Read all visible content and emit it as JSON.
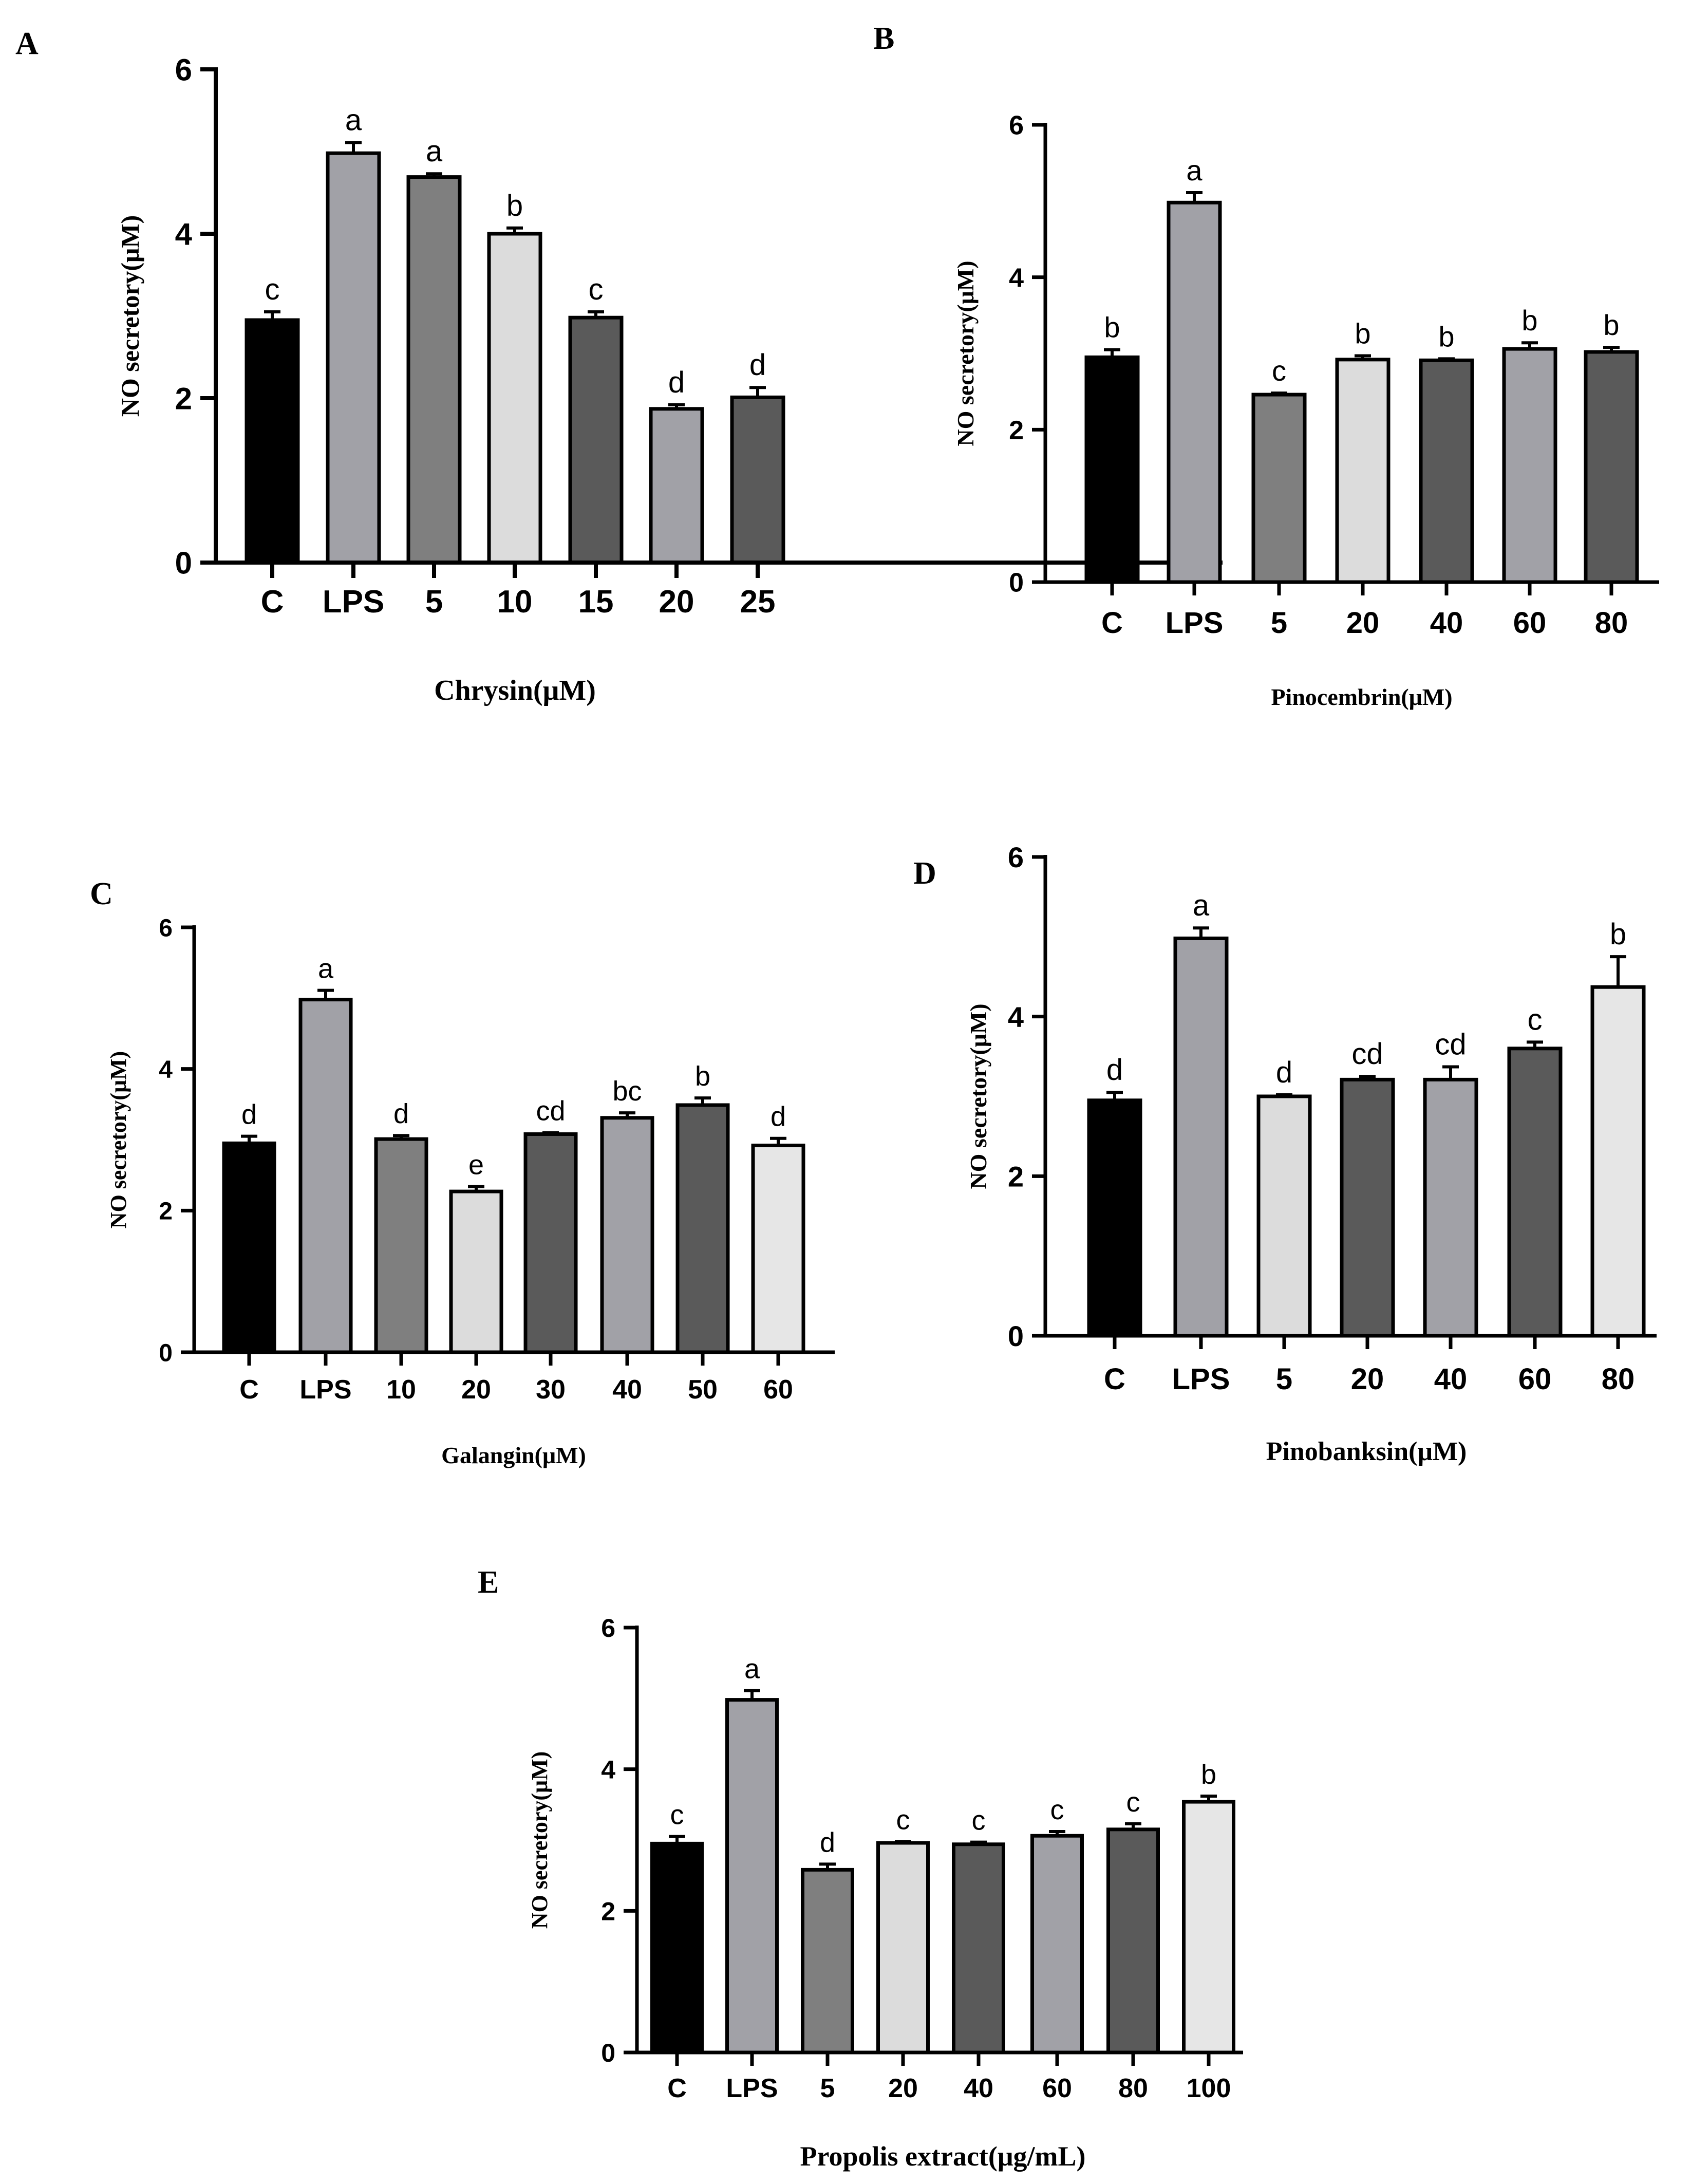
{
  "chart_data": [
    {
      "panel": "A",
      "type": "bar",
      "xlabel": "Chrysin(μM)",
      "ylabel": "NO secretory(μM)",
      "ylim": [
        0,
        6
      ],
      "yticks": [
        "0",
        "2",
        "4",
        "6"
      ],
      "categories": [
        "C",
        "LPS",
        "5",
        "10",
        "15",
        "20",
        "25"
      ],
      "values": [
        2.95,
        4.98,
        4.69,
        4.0,
        2.98,
        1.87,
        2.01
      ],
      "errors": [
        0.1,
        0.13,
        0.04,
        0.07,
        0.07,
        0.05,
        0.12
      ],
      "sig_labels": [
        "c",
        "a",
        "a",
        "b",
        "c",
        "d",
        "d"
      ],
      "colors": [
        "#000000",
        "#a1a1a7",
        "#7f7f7f",
        "#dcdcdc",
        "#5a5a5a",
        "#a1a1a7",
        "#5a5a5a"
      ]
    },
    {
      "panel": "B",
      "type": "bar",
      "xlabel": "Pinocembrin(μM)",
      "ylabel": "NO secretory(μM)",
      "ylim": [
        0,
        6
      ],
      "yticks": [
        "0",
        "2",
        "4",
        "6"
      ],
      "categories": [
        "C",
        "LPS",
        "5",
        "20",
        "40",
        "60",
        "80"
      ],
      "values": [
        2.95,
        4.98,
        2.46,
        2.92,
        2.91,
        3.06,
        3.02
      ],
      "errors": [
        0.1,
        0.13,
        0.02,
        0.05,
        0.02,
        0.08,
        0.06
      ],
      "sig_labels": [
        "b",
        "a",
        "c",
        "b",
        "b",
        "b",
        "b"
      ],
      "colors": [
        "#000000",
        "#a1a1a7",
        "#7f7f7f",
        "#dcdcdc",
        "#5a5a5a",
        "#a1a1a7",
        "#5a5a5a"
      ]
    },
    {
      "panel": "C",
      "type": "bar",
      "xlabel": "Galangin(μM)",
      "ylabel": "NO secretory(μM)",
      "ylim": [
        0,
        6
      ],
      "yticks": [
        "0",
        "2",
        "4",
        "6"
      ],
      "categories": [
        "C",
        "LPS",
        "10",
        "20",
        "30",
        "40",
        "50",
        "60"
      ],
      "values": [
        2.95,
        4.98,
        3.01,
        2.27,
        3.08,
        3.31,
        3.49,
        2.92
      ],
      "errors": [
        0.1,
        0.13,
        0.05,
        0.07,
        0.02,
        0.07,
        0.1,
        0.1
      ],
      "sig_labels": [
        "d",
        "a",
        "d",
        "e",
        "cd",
        "bc",
        "b",
        "d"
      ],
      "colors": [
        "#000000",
        "#a1a1a7",
        "#7f7f7f",
        "#dcdcdc",
        "#5a5a5a",
        "#a1a1a7",
        "#5a5a5a",
        "#e6e6e6"
      ]
    },
    {
      "panel": "D",
      "type": "bar",
      "xlabel": "Pinobanksin(μM)",
      "ylabel": "NO secretory(μM)",
      "ylim": [
        0,
        6
      ],
      "yticks": [
        "0",
        "2",
        "4",
        "6"
      ],
      "categories": [
        "C",
        "LPS",
        "5",
        "20",
        "40",
        "60",
        "80"
      ],
      "values": [
        2.95,
        4.98,
        3.0,
        3.21,
        3.21,
        3.6,
        4.37
      ],
      "errors": [
        0.1,
        0.13,
        0.02,
        0.04,
        0.16,
        0.08,
        0.38
      ],
      "sig_labels": [
        "d",
        "a",
        "d",
        "cd",
        "cd",
        "c",
        "b"
      ],
      "colors": [
        "#000000",
        "#a1a1a7",
        "#dcdcdc",
        "#5a5a5a",
        "#a1a1a7",
        "#5a5a5a",
        "#e6e6e6"
      ]
    },
    {
      "panel": "E",
      "type": "bar",
      "xlabel": "Propolis extract(μg/mL)",
      "ylabel": "NO secretory(μM)",
      "ylim": [
        0,
        6
      ],
      "yticks": [
        "0",
        "2",
        "4",
        "6"
      ],
      "categories": [
        "C",
        "LPS",
        "5",
        "20",
        "40",
        "60",
        "80",
        "100"
      ],
      "values": [
        2.95,
        4.98,
        2.58,
        2.96,
        2.94,
        3.06,
        3.15,
        3.54
      ],
      "errors": [
        0.1,
        0.13,
        0.08,
        0.02,
        0.03,
        0.06,
        0.08,
        0.08
      ],
      "sig_labels": [
        "c",
        "a",
        "d",
        "c",
        "c",
        "c",
        "c",
        "b"
      ],
      "colors": [
        "#000000",
        "#a1a1a7",
        "#7f7f7f",
        "#dcdcdc",
        "#5a5a5a",
        "#a1a1a7",
        "#5a5a5a",
        "#e6e6e6"
      ]
    }
  ]
}
